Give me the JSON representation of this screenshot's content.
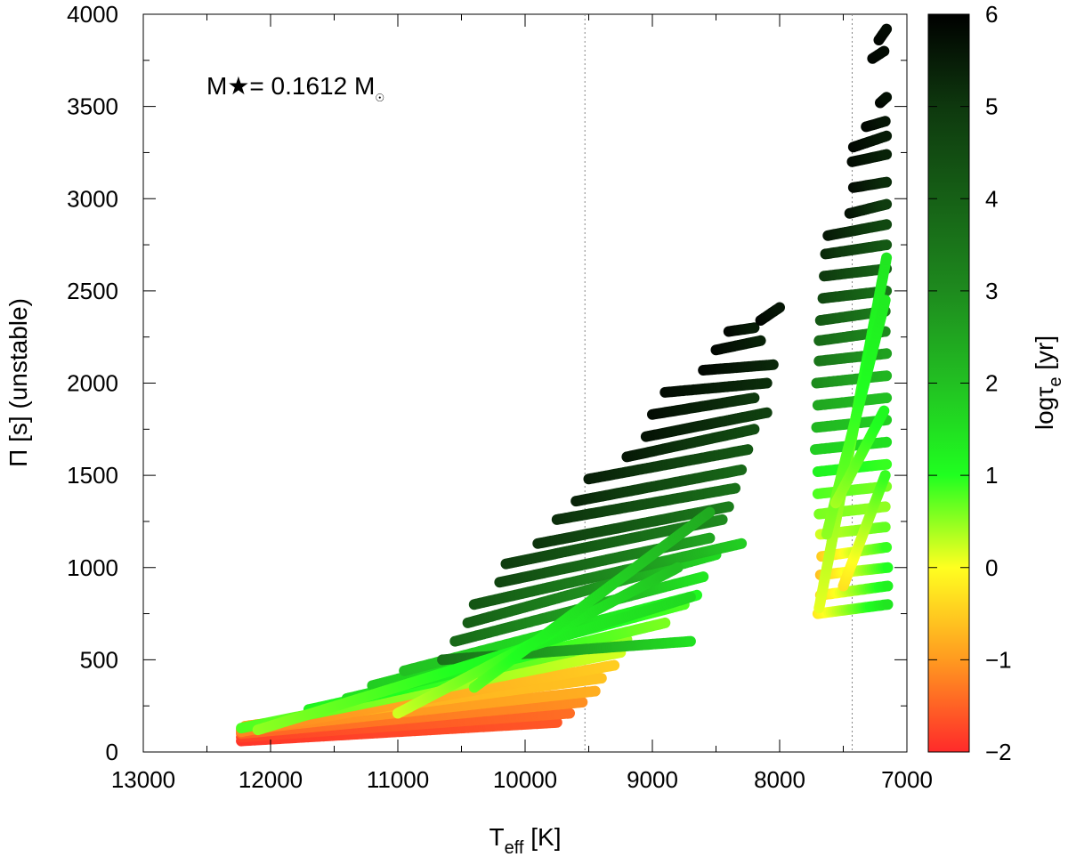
{
  "chart_data": {
    "type": "scatter",
    "xlabel": {
      "main": "T",
      "sub": "eff",
      "unit": " [K]"
    },
    "ylabel": "Π [s] (unstable)",
    "xlim": [
      13000,
      7000
    ],
    "ylim": [
      0,
      4000
    ],
    "x_reversed": true,
    "xticks": [
      13000,
      12000,
      11000,
      10000,
      9000,
      8000,
      7000
    ],
    "yticks": [
      0,
      500,
      1000,
      1500,
      2000,
      2500,
      3000,
      3500,
      4000
    ],
    "grid": false,
    "vertical_lines": [
      9530,
      7430
    ],
    "annotation": {
      "text": "M★= 0.1612 M",
      "sub": "☉"
    },
    "colorbar": {
      "label": "logτe [yr]",
      "label_main": "log",
      "label_tau": "τ",
      "label_sub": "e",
      "label_unit": " [yr]",
      "range": [
        -2,
        6
      ],
      "ticks": [
        "6",
        "5",
        "4",
        "3",
        "2",
        "1",
        "0",
        "−1",
        "−2"
      ],
      "tick_values": [
        6,
        5,
        4,
        3,
        2,
        1,
        0,
        -1,
        -2
      ],
      "colors": [
        {
          "v": -2,
          "c": "#ff2a2a"
        },
        {
          "v": -1,
          "c": "#ff9a20"
        },
        {
          "v": 0,
          "c": "#ffff20"
        },
        {
          "v": 1,
          "c": "#20ff20"
        },
        {
          "v": 2,
          "c": "#22c022"
        },
        {
          "v": 3,
          "c": "#1e8a1e"
        },
        {
          "v": 4,
          "c": "#166016"
        },
        {
          "v": 5,
          "c": "#0e380e"
        },
        {
          "v": 6,
          "c": "#000000"
        }
      ]
    },
    "series": [
      {
        "x": [
          12230,
          9750
        ],
        "y": [
          60,
          160
        ],
        "logtau": [
          -1.9,
          -1.6
        ]
      },
      {
        "x": [
          12230,
          9650
        ],
        "y": [
          80,
          210
        ],
        "logtau": [
          -1.8,
          -1.4
        ]
      },
      {
        "x": [
          12230,
          9550
        ],
        "y": [
          100,
          270
        ],
        "logtau": [
          -1.5,
          -1.1
        ]
      },
      {
        "x": [
          12230,
          9450
        ],
        "y": [
          120,
          330
        ],
        "logtau": [
          -1.2,
          -0.8
        ]
      },
      {
        "x": [
          12200,
          9400
        ],
        "y": [
          140,
          400
        ],
        "logtau": [
          -0.9,
          -0.6
        ]
      },
      {
        "x": [
          12230,
          9300
        ],
        "y": [
          110,
          470
        ],
        "logtau": [
          -1.2,
          -0.5
        ]
      },
      {
        "x": [
          12230,
          9250
        ],
        "y": [
          130,
          540
        ],
        "logtau": [
          0.8,
          0.2
        ]
      },
      {
        "x": [
          11700,
          9200
        ],
        "y": [
          230,
          610
        ],
        "logtau": [
          1.2,
          0.5
        ]
      },
      {
        "x": [
          11400,
          8900
        ],
        "y": [
          290,
          700
        ],
        "logtau": [
          1.5,
          0.6
        ]
      },
      {
        "x": [
          11200,
          8750
        ],
        "y": [
          360,
          800
        ],
        "logtau": [
          1.8,
          0.8
        ]
      },
      {
        "x": [
          10950,
          8650
        ],
        "y": [
          440,
          850
        ],
        "logtau": [
          2.0,
          1.1
        ]
      },
      {
        "x": [
          10650,
          8700
        ],
        "y": [
          500,
          600
        ],
        "logtau": [
          3.6,
          1.5
        ]
      },
      {
        "x": [
          10550,
          8600
        ],
        "y": [
          600,
          950
        ],
        "logtau": [
          3.8,
          1.4
        ]
      },
      {
        "x": [
          10450,
          8500
        ],
        "y": [
          700,
          1070
        ],
        "logtau": [
          4.1,
          1.6
        ]
      },
      {
        "x": [
          10400,
          8300
        ],
        "y": [
          800,
          1130
        ],
        "logtau": [
          4.3,
          1.8
        ]
      },
      {
        "x": [
          10200,
          8550
        ],
        "y": [
          920,
          1160
        ],
        "logtau": [
          4.7,
          2.5
        ]
      },
      {
        "x": [
          10150,
          8450
        ],
        "y": [
          1020,
          1260
        ],
        "logtau": [
          4.9,
          3.0
        ]
      },
      {
        "x": [
          9900,
          8400
        ],
        "y": [
          1130,
          1330
        ],
        "logtau": [
          5.1,
          3.3
        ]
      },
      {
        "x": [
          9750,
          8350
        ],
        "y": [
          1260,
          1430
        ],
        "logtau": [
          5.2,
          3.6
        ]
      },
      {
        "x": [
          9600,
          8300
        ],
        "y": [
          1360,
          1530
        ],
        "logtau": [
          5.4,
          3.8
        ]
      },
      {
        "x": [
          9500,
          8250
        ],
        "y": [
          1480,
          1640
        ],
        "logtau": [
          5.5,
          4.2
        ]
      },
      {
        "x": [
          9200,
          8200
        ],
        "y": [
          1600,
          1750
        ],
        "logtau": [
          5.6,
          4.5
        ]
      },
      {
        "x": [
          9050,
          8100
        ],
        "y": [
          1710,
          1840
        ],
        "logtau": [
          5.7,
          4.8
        ]
      },
      {
        "x": [
          9000,
          8200
        ],
        "y": [
          1830,
          1920
        ],
        "logtau": [
          5.8,
          5.0
        ]
      },
      {
        "x": [
          8900,
          8100
        ],
        "y": [
          1950,
          2000
        ],
        "logtau": [
          5.8,
          5.2
        ]
      },
      {
        "x": [
          8600,
          8050
        ],
        "y": [
          2070,
          2100
        ],
        "logtau": [
          5.9,
          5.3
        ]
      },
      {
        "x": [
          8500,
          8150
        ],
        "y": [
          2180,
          2230
        ],
        "logtau": [
          5.9,
          5.4
        ]
      },
      {
        "x": [
          8400,
          8200
        ],
        "y": [
          2280,
          2300
        ],
        "logtau": [
          5.9,
          5.5
        ]
      },
      {
        "x": [
          8150,
          8000
        ],
        "y": [
          2340,
          2410
        ],
        "logtau": [
          5.9,
          5.6
        ]
      },
      {
        "x": [
          12100,
          8700
        ],
        "y": [
          120,
          840
        ],
        "logtau": [
          0.5,
          1.6
        ]
      },
      {
        "x": [
          11000,
          8800
        ],
        "y": [
          210,
          1000
        ],
        "logtau": [
          0.2,
          2.0
        ]
      },
      {
        "x": [
          10400,
          8550
        ],
        "y": [
          350,
          1300
        ],
        "logtau": [
          0.7,
          2.4
        ]
      },
      {
        "x": [
          7700,
          7150
        ],
        "y": [
          750,
          800
        ],
        "logtau": [
          -0.2,
          1.4
        ]
      },
      {
        "x": [
          7680,
          7150
        ],
        "y": [
          850,
          900
        ],
        "logtau": [
          -0.4,
          1.2
        ]
      },
      {
        "x": [
          7680,
          7150
        ],
        "y": [
          960,
          1000
        ],
        "logtau": [
          -0.6,
          1.0
        ]
      },
      {
        "x": [
          7670,
          7160
        ],
        "y": [
          1060,
          1110
        ],
        "logtau": [
          -0.5,
          0.9
        ]
      },
      {
        "x": [
          7680,
          7170
        ],
        "y": [
          1180,
          1220
        ],
        "logtau": [
          0.2,
          0.7
        ]
      },
      {
        "x": [
          7690,
          7170
        ],
        "y": [
          1290,
          1330
        ],
        "logtau": [
          0.6,
          0.5
        ]
      },
      {
        "x": [
          7700,
          7160
        ],
        "y": [
          1400,
          1440
        ],
        "logtau": [
          0.8,
          0.6
        ]
      },
      {
        "x": [
          7700,
          7160
        ],
        "y": [
          1520,
          1560
        ],
        "logtau": [
          1.2,
          0.9
        ]
      },
      {
        "x": [
          7720,
          7160
        ],
        "y": [
          1640,
          1680
        ],
        "logtau": [
          1.8,
          1.5
        ]
      },
      {
        "x": [
          7710,
          7160
        ],
        "y": [
          1760,
          1800
        ],
        "logtau": [
          2.2,
          1.8
        ]
      },
      {
        "x": [
          7700,
          7160
        ],
        "y": [
          1880,
          1920
        ],
        "logtau": [
          2.5,
          2.0
        ]
      },
      {
        "x": [
          7710,
          7160
        ],
        "y": [
          2000,
          2040
        ],
        "logtau": [
          3.0,
          2.2
        ]
      },
      {
        "x": [
          7690,
          7160
        ],
        "y": [
          2120,
          2160
        ],
        "logtau": [
          3.5,
          2.6
        ]
      },
      {
        "x": [
          7690,
          7170
        ],
        "y": [
          2230,
          2280
        ],
        "logtau": [
          3.8,
          3.0
        ]
      },
      {
        "x": [
          7680,
          7170
        ],
        "y": [
          2340,
          2390
        ],
        "logtau": [
          4.2,
          3.3
        ]
      },
      {
        "x": [
          7660,
          7160
        ],
        "y": [
          2460,
          2500
        ],
        "logtau": [
          4.6,
          3.6
        ]
      },
      {
        "x": [
          7650,
          7160
        ],
        "y": [
          2580,
          2620
        ],
        "logtau": [
          5.0,
          3.9
        ]
      },
      {
        "x": [
          7640,
          7160
        ],
        "y": [
          2700,
          2750
        ],
        "logtau": [
          5.3,
          4.2
        ]
      },
      {
        "x": [
          7620,
          7160
        ],
        "y": [
          2800,
          2860
        ],
        "logtau": [
          5.6,
          4.6
        ]
      },
      {
        "x": [
          7450,
          7160
        ],
        "y": [
          2920,
          2970
        ],
        "logtau": [
          5.7,
          4.9
        ]
      },
      {
        "x": [
          7420,
          7160
        ],
        "y": [
          3060,
          3090
        ],
        "logtau": [
          5.8,
          5.2
        ]
      },
      {
        "x": [
          7430,
          7160
        ],
        "y": [
          3200,
          3240
        ],
        "logtau": [
          5.8,
          5.4
        ]
      },
      {
        "x": [
          7420,
          7160
        ],
        "y": [
          3280,
          3340
        ],
        "logtau": [
          5.9,
          5.5
        ]
      },
      {
        "x": [
          7320,
          7170
        ],
        "y": [
          3390,
          3420
        ],
        "logtau": [
          5.9,
          5.6
        ]
      },
      {
        "x": [
          7210,
          7160
        ],
        "y": [
          3520,
          3550
        ],
        "logtau": [
          5.9,
          5.7
        ]
      },
      {
        "x": [
          7270,
          7180
        ],
        "y": [
          3760,
          3800
        ],
        "logtau": [
          5.9,
          5.8
        ]
      },
      {
        "x": [
          7220,
          7160
        ],
        "y": [
          3860,
          3920
        ],
        "logtau": [
          5.9,
          5.8
        ]
      },
      {
        "x": [
          7690,
          7160
        ],
        "y": [
          780,
          2680
        ],
        "logtau": [
          0.1,
          1.4
        ]
      },
      {
        "x": [
          7630,
          7170
        ],
        "y": [
          1180,
          2450
        ],
        "logtau": [
          0.5,
          1.3
        ]
      },
      {
        "x": [
          7560,
          7180
        ],
        "y": [
          1350,
          1850
        ],
        "logtau": [
          0.4,
          1.1
        ]
      },
      {
        "x": [
          7500,
          7170
        ],
        "y": [
          900,
          1500
        ],
        "logtau": [
          -0.3,
          0.9
        ]
      }
    ]
  }
}
